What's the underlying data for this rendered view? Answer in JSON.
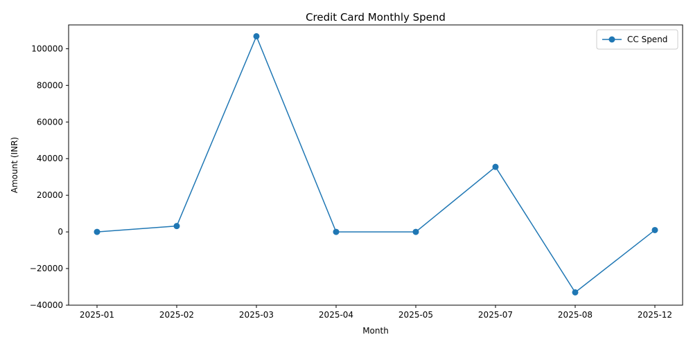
{
  "chart_data": {
    "type": "line",
    "title": "Credit Card Monthly Spend",
    "xlabel": "Month",
    "ylabel": "Amount (INR)",
    "categories": [
      "2025-01",
      "2025-02",
      "2025-03",
      "2025-04",
      "2025-05",
      "2025-07",
      "2025-08",
      "2025-12"
    ],
    "series": [
      {
        "name": "CC Spend",
        "values": [
          0,
          3200,
          106800,
          0,
          0,
          35500,
          -33000,
          1000
        ],
        "color": "#1f77b4",
        "marker": "circle"
      }
    ],
    "ylim": [
      -40000,
      113000
    ],
    "yticks": [
      -40000,
      -20000,
      0,
      20000,
      40000,
      60000,
      80000,
      100000
    ],
    "ytick_labels": [
      "−40000",
      "−20000",
      "0",
      "20000",
      "40000",
      "60000",
      "80000",
      "100000"
    ],
    "grid": false,
    "legend_position": "top-right"
  }
}
